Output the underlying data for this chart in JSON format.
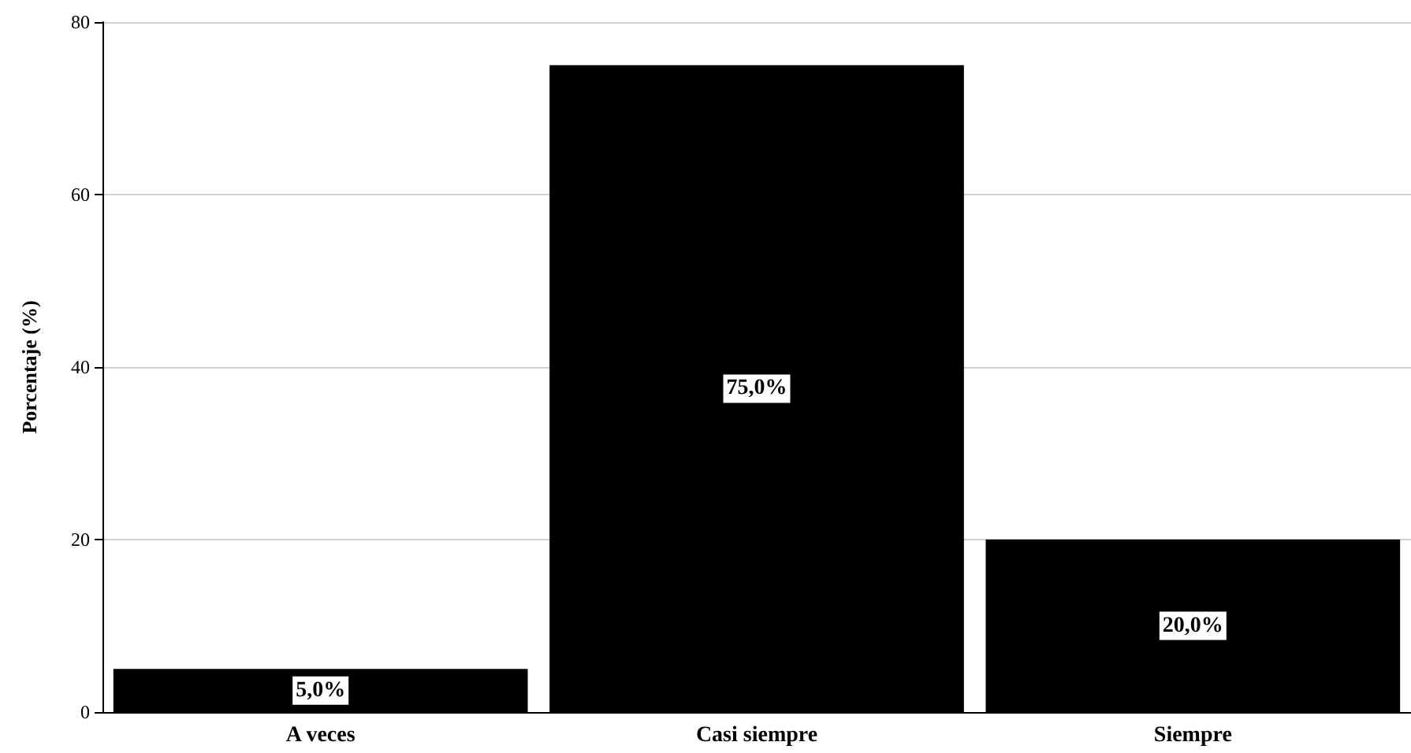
{
  "chart_data": {
    "type": "bar",
    "ylabel": "Porcentaje (%)",
    "categories": [
      "A veces",
      "Casi siempre",
      "Siempre"
    ],
    "values": [
      5,
      75,
      20
    ],
    "color": "#000000",
    "value_labels": [
      "5,0%",
      "75,0%",
      "20,0%"
    ],
    "ylim": [
      0,
      80
    ],
    "yticks": [
      0,
      20,
      40,
      60,
      80
    ],
    "grid": "y"
  }
}
